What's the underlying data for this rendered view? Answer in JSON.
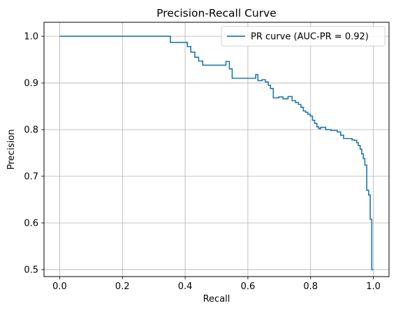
{
  "chart_data": {
    "type": "line",
    "title": "Precision-Recall Curve",
    "xlabel": "Recall",
    "ylabel": "Precision",
    "xlim": [
      -0.05,
      1.05
    ],
    "ylim": [
      0.485,
      1.03
    ],
    "xticks": [
      0.0,
      0.2,
      0.4,
      0.6,
      0.8,
      1.0
    ],
    "xtick_labels": [
      "0.0",
      "0.2",
      "0.4",
      "0.6",
      "0.8",
      "1.0"
    ],
    "yticks": [
      0.5,
      0.6,
      0.7,
      0.8,
      0.9,
      1.0
    ],
    "ytick_labels": [
      "0.5",
      "0.6",
      "0.7",
      "0.8",
      "0.9",
      "1.0"
    ],
    "grid": true,
    "legend_position": "upper right",
    "colors": {
      "line": "#1f77b4",
      "grid": "#b0b0b0",
      "axes": "#000000"
    },
    "series": [
      {
        "name": "PR curve (AUC-PR = 0.92)",
        "step": true,
        "x": [
          0.0,
          0.353,
          0.407,
          0.418,
          0.431,
          0.443,
          0.456,
          0.53,
          0.541,
          0.55,
          0.625,
          0.632,
          0.645,
          0.656,
          0.665,
          0.672,
          0.681,
          0.698,
          0.712,
          0.728,
          0.741,
          0.752,
          0.761,
          0.769,
          0.777,
          0.784,
          0.791,
          0.799,
          0.806,
          0.813,
          0.82,
          0.826,
          0.832,
          0.848,
          0.865,
          0.885,
          0.896,
          0.905,
          0.932,
          0.94,
          0.947,
          0.952,
          0.958,
          0.963,
          0.968,
          0.973,
          0.979,
          0.985,
          0.99,
          0.995,
          1.0
        ],
        "y": [
          1.0,
          0.987,
          0.978,
          0.966,
          0.955,
          0.947,
          0.938,
          0.946,
          0.93,
          0.91,
          0.918,
          0.905,
          0.907,
          0.902,
          0.895,
          0.888,
          0.868,
          0.87,
          0.866,
          0.871,
          0.862,
          0.858,
          0.854,
          0.848,
          0.84,
          0.837,
          0.833,
          0.829,
          0.82,
          0.813,
          0.806,
          0.802,
          0.805,
          0.8,
          0.798,
          0.795,
          0.788,
          0.781,
          0.778,
          0.777,
          0.772,
          0.766,
          0.758,
          0.748,
          0.738,
          0.724,
          0.67,
          0.66,
          0.608,
          0.5,
          0.5
        ]
      }
    ]
  }
}
